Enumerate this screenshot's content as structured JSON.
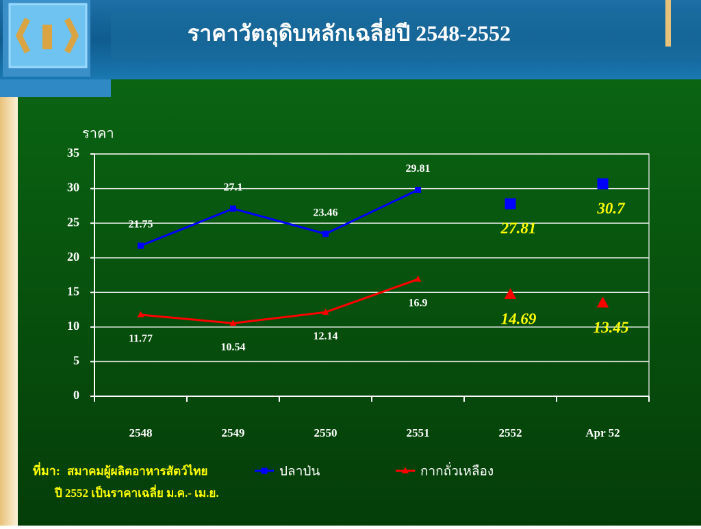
{
  "chart_data": {
    "type": "line",
    "title": "ราคาวัตถุดิบหลักเฉลี่ยปี 2548-2552",
    "y_label": "ราคา",
    "categories": [
      "2548",
      "2549",
      "2550",
      "2551",
      "2552",
      "Apr 52"
    ],
    "emphasized": [
      false,
      false,
      false,
      false,
      true,
      true
    ],
    "series": [
      {
        "name": "ปลาป่น",
        "color": "#0000ff",
        "marker": "square",
        "label_position": "above",
        "values": [
          21.75,
          27.1,
          23.46,
          29.81,
          27.81,
          30.7
        ]
      },
      {
        "name": "กากถั่วเหลือง",
        "color": "#ff0000",
        "marker": "triangle",
        "label_position": "below",
        "values": [
          11.77,
          10.54,
          12.14,
          16.9,
          14.69,
          13.45
        ]
      }
    ],
    "ylim": [
      0,
      35
    ],
    "yticks": [
      0,
      5,
      10,
      15,
      20,
      25,
      30,
      35
    ],
    "grid": true,
    "source_label": "ที่มา:",
    "source": "สมาคมผู้ผลิตอาหารสัตว์ไทย",
    "note": "ปี 2552 เป็นราคาเฉลี่ย ม.ค.- เม.ย."
  }
}
